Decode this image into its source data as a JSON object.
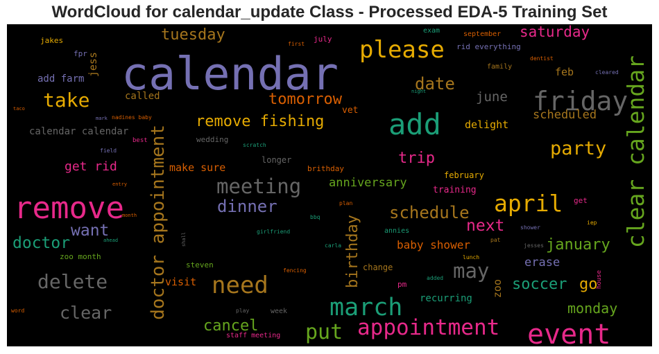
{
  "title": "WordCloud for calendar_update Class - Processed EDA-5 Training Set",
  "colors": {
    "background": "#000000",
    "purple": "#7570b3",
    "pink": "#e7298a",
    "green": "#1b9e77",
    "olive": "#66a61e",
    "orange": "#d95f02",
    "gold": "#e6ab02",
    "brown": "#a6761d",
    "gray": "#666666"
  },
  "words": [
    {
      "text": "calendar",
      "color": "purple"
    },
    {
      "text": "remove",
      "color": "pink"
    },
    {
      "text": "add",
      "color": "green"
    },
    {
      "text": "please",
      "color": "gold"
    },
    {
      "text": "event",
      "color": "pink"
    },
    {
      "text": "march",
      "color": "green"
    },
    {
      "text": "need",
      "color": "brown"
    },
    {
      "text": "appointment",
      "color": "pink"
    },
    {
      "text": "friday",
      "color": "gray"
    },
    {
      "text": "clear calendar",
      "color": "olive"
    },
    {
      "text": "april",
      "color": "gold"
    },
    {
      "text": "doctor appointment",
      "color": "brown"
    },
    {
      "text": "meeting",
      "color": "gray"
    },
    {
      "text": "delete",
      "color": "gray"
    },
    {
      "text": "take",
      "color": "gold"
    },
    {
      "text": "put",
      "color": "olive"
    },
    {
      "text": "may",
      "color": "gray"
    },
    {
      "text": "clear",
      "color": "gray"
    },
    {
      "text": "party",
      "color": "gold"
    },
    {
      "text": "schedule",
      "color": "brown"
    },
    {
      "text": "dinner",
      "color": "purple"
    },
    {
      "text": "doctor",
      "color": "green"
    },
    {
      "text": "want",
      "color": "purple"
    },
    {
      "text": "tuesday",
      "color": "brown"
    },
    {
      "text": "date",
      "color": "brown"
    },
    {
      "text": "remove fishing",
      "color": "gold"
    },
    {
      "text": "tomorrow",
      "color": "orange"
    },
    {
      "text": "saturday",
      "color": "pink"
    },
    {
      "text": "next",
      "color": "pink"
    },
    {
      "text": "january",
      "color": "olive"
    },
    {
      "text": "birthday",
      "color": "brown"
    },
    {
      "text": "cancel",
      "color": "olive"
    },
    {
      "text": "soccer",
      "color": "green"
    },
    {
      "text": "trip",
      "color": "pink"
    },
    {
      "text": "monday",
      "color": "olive"
    },
    {
      "text": "go",
      "color": "gold"
    },
    {
      "text": "june",
      "color": "gray"
    },
    {
      "text": "scheduled",
      "color": "brown"
    },
    {
      "text": "get rid",
      "color": "pink"
    },
    {
      "text": "erase",
      "color": "purple"
    },
    {
      "text": "anniversary",
      "color": "olive"
    },
    {
      "text": "baby shower",
      "color": "orange"
    },
    {
      "text": "jess",
      "color": "brown"
    },
    {
      "text": "calendar calendar",
      "color": "gray"
    },
    {
      "text": "make sure",
      "color": "orange"
    },
    {
      "text": "delight",
      "color": "gold"
    },
    {
      "text": "feb",
      "color": "brown"
    },
    {
      "text": "zoo",
      "color": "brown"
    },
    {
      "text": "visit",
      "color": "orange"
    },
    {
      "text": "add farm",
      "color": "purple"
    },
    {
      "text": "called",
      "color": "brown"
    },
    {
      "text": "recurring",
      "color": "green"
    },
    {
      "text": "training",
      "color": "pink"
    },
    {
      "text": "february",
      "color": "gold"
    },
    {
      "text": "vet",
      "color": "orange"
    },
    {
      "text": "longer",
      "color": "gray"
    },
    {
      "text": "brithday",
      "color": "orange"
    },
    {
      "text": "change",
      "color": "brown"
    },
    {
      "text": "wedding",
      "color": "gray"
    },
    {
      "text": "steven",
      "color": "olive"
    },
    {
      "text": "zoo month",
      "color": "olive"
    },
    {
      "text": "jakes",
      "color": "gold"
    },
    {
      "text": "fpr",
      "color": "purple"
    },
    {
      "text": "july",
      "color": "pink"
    },
    {
      "text": "exam",
      "color": "green"
    },
    {
      "text": "september",
      "color": "orange"
    },
    {
      "text": "rid everything",
      "color": "purple"
    },
    {
      "text": "family",
      "color": "brown"
    },
    {
      "text": "dentist",
      "color": "orange"
    },
    {
      "text": "cleared",
      "color": "purple"
    },
    {
      "text": "first",
      "color": "orange"
    },
    {
      "text": "night",
      "color": "green"
    },
    {
      "text": "taco",
      "color": "orange"
    },
    {
      "text": "mark",
      "color": "purple"
    },
    {
      "text": "nadines baby",
      "color": "orange"
    },
    {
      "text": "best",
      "color": "pink"
    },
    {
      "text": "field",
      "color": "purple"
    },
    {
      "text": "scratch",
      "color": "green"
    },
    {
      "text": "entry",
      "color": "orange"
    },
    {
      "text": "month",
      "color": "orange"
    },
    {
      "text": "plan",
      "color": "orange"
    },
    {
      "text": "get",
      "color": "pink"
    },
    {
      "text": "bbq",
      "color": "green"
    },
    {
      "text": "iep",
      "color": "gold"
    },
    {
      "text": "girlfriend",
      "color": "green"
    },
    {
      "text": "annies",
      "color": "green"
    },
    {
      "text": "shower",
      "color": "purple"
    },
    {
      "text": "ahead",
      "color": "green"
    },
    {
      "text": "shall",
      "color": "gray"
    },
    {
      "text": "carla",
      "color": "green"
    },
    {
      "text": "pat",
      "color": "brown"
    },
    {
      "text": "jesses",
      "color": "gray"
    },
    {
      "text": "lunch",
      "color": "gold"
    },
    {
      "text": "fencing",
      "color": "orange"
    },
    {
      "text": "added",
      "color": "green"
    },
    {
      "text": "pm",
      "color": "pink"
    },
    {
      "text": "house",
      "color": "pink"
    },
    {
      "text": "word",
      "color": "orange"
    },
    {
      "text": "play",
      "color": "gray"
    },
    {
      "text": "week",
      "color": "gray"
    },
    {
      "text": "staff meeting",
      "color": "pink"
    }
  ]
}
